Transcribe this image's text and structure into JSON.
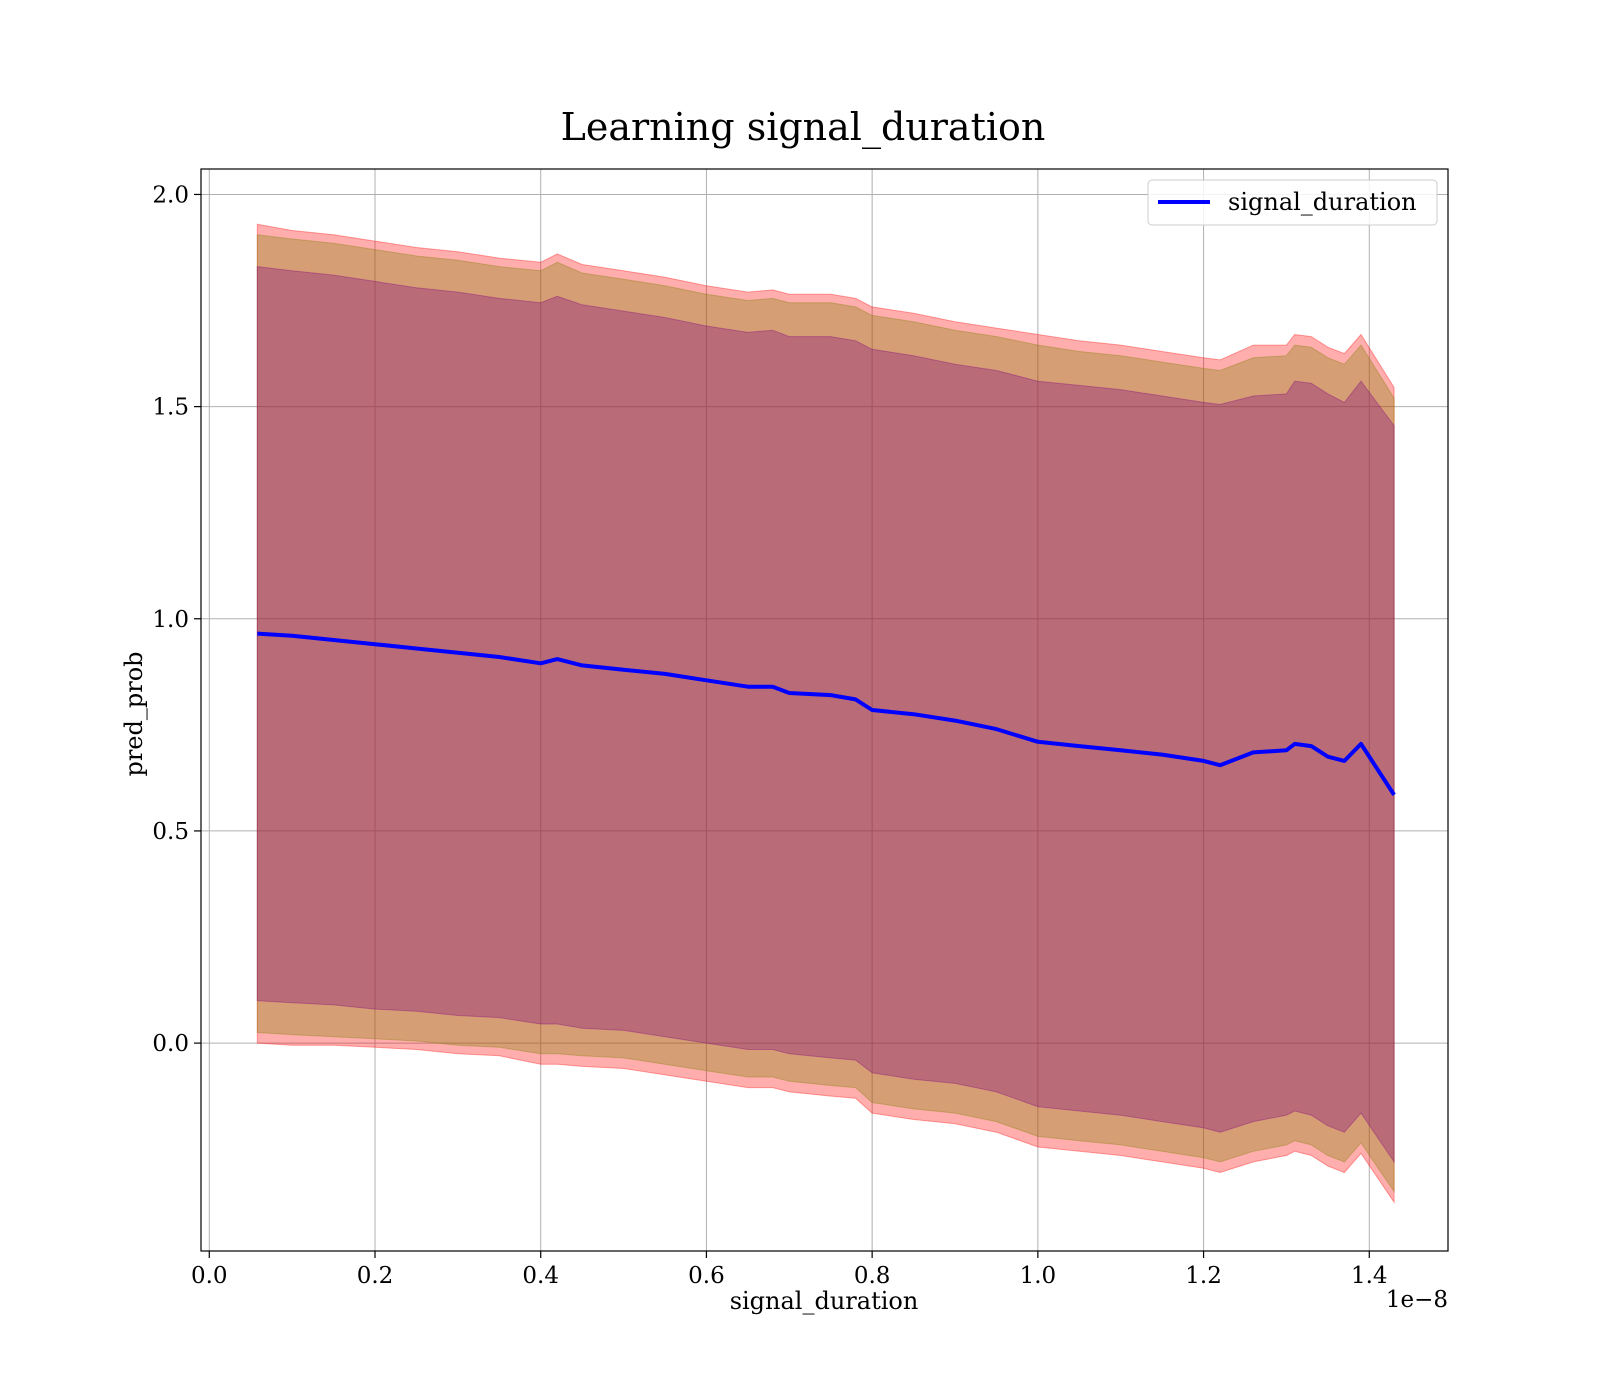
{
  "chart_data": {
    "type": "line",
    "title": "Learning signal_duration",
    "xlabel": "signal_duration",
    "ylabel": "pred_prob",
    "x_offset_text": "1e−8",
    "xlim": [
      -0.01,
      1.495
    ],
    "ylim": [
      -0.49,
      2.06
    ],
    "x_ticks": [
      0.0,
      0.2,
      0.4,
      0.6,
      0.8,
      1.0,
      1.2,
      1.4
    ],
    "x_tick_labels": [
      "0.0",
      "0.2",
      "0.4",
      "0.6",
      "0.8",
      "1.0",
      "1.2",
      "1.4"
    ],
    "y_ticks": [
      0.0,
      0.5,
      1.0,
      1.5,
      2.0
    ],
    "y_tick_labels": [
      "0.0",
      "0.5",
      "1.0",
      "1.5",
      "2.0"
    ],
    "grid": true,
    "legend": {
      "position": "top-right",
      "entries": [
        "signal_duration"
      ]
    },
    "x": [
      0.058,
      0.1,
      0.15,
      0.2,
      0.25,
      0.3,
      0.35,
      0.4,
      0.42,
      0.45,
      0.5,
      0.55,
      0.6,
      0.65,
      0.68,
      0.7,
      0.75,
      0.78,
      0.8,
      0.85,
      0.9,
      0.95,
      1.0,
      1.05,
      1.1,
      1.15,
      1.2,
      1.22,
      1.26,
      1.3,
      1.31,
      1.33,
      1.35,
      1.37,
      1.39,
      1.43
    ],
    "series": [
      {
        "name": "signal_duration",
        "color": "#0000ff",
        "values": [
          0.965,
          0.96,
          0.95,
          0.94,
          0.93,
          0.92,
          0.91,
          0.895,
          0.905,
          0.89,
          0.88,
          0.87,
          0.855,
          0.84,
          0.84,
          0.825,
          0.82,
          0.81,
          0.785,
          0.775,
          0.76,
          0.74,
          0.71,
          0.7,
          0.69,
          0.68,
          0.665,
          0.655,
          0.685,
          0.69,
          0.705,
          0.7,
          0.675,
          0.665,
          0.705,
          0.585
        ]
      }
    ],
    "bands": [
      {
        "color": "#ff0000",
        "opacity": 0.32,
        "upper": [
          1.93,
          1.915,
          1.905,
          1.89,
          1.875,
          1.865,
          1.85,
          1.84,
          1.86,
          1.835,
          1.82,
          1.805,
          1.785,
          1.77,
          1.775,
          1.765,
          1.765,
          1.755,
          1.735,
          1.72,
          1.7,
          1.685,
          1.67,
          1.655,
          1.645,
          1.63,
          1.615,
          1.61,
          1.645,
          1.645,
          1.67,
          1.665,
          1.64,
          1.625,
          1.67,
          1.545
        ],
        "lower": [
          0.0,
          -0.005,
          -0.005,
          -0.01,
          -0.015,
          -0.025,
          -0.03,
          -0.05,
          -0.05,
          -0.055,
          -0.06,
          -0.075,
          -0.09,
          -0.105,
          -0.105,
          -0.115,
          -0.125,
          -0.13,
          -0.165,
          -0.18,
          -0.19,
          -0.21,
          -0.245,
          -0.255,
          -0.265,
          -0.28,
          -0.295,
          -0.305,
          -0.28,
          -0.265,
          -0.255,
          -0.265,
          -0.29,
          -0.305,
          -0.26,
          -0.375
        ]
      },
      {
        "color": "#808000",
        "opacity": 0.32,
        "upper": [
          1.905,
          1.895,
          1.885,
          1.87,
          1.855,
          1.845,
          1.83,
          1.82,
          1.84,
          1.815,
          1.8,
          1.785,
          1.765,
          1.75,
          1.755,
          1.745,
          1.745,
          1.735,
          1.715,
          1.7,
          1.68,
          1.665,
          1.645,
          1.63,
          1.62,
          1.605,
          1.59,
          1.585,
          1.615,
          1.62,
          1.645,
          1.64,
          1.615,
          1.6,
          1.645,
          1.52
        ],
        "lower": [
          0.025,
          0.02,
          0.015,
          0.01,
          0.005,
          -0.005,
          -0.01,
          -0.025,
          -0.025,
          -0.03,
          -0.035,
          -0.05,
          -0.065,
          -0.08,
          -0.08,
          -0.09,
          -0.1,
          -0.105,
          -0.14,
          -0.155,
          -0.165,
          -0.185,
          -0.22,
          -0.23,
          -0.24,
          -0.255,
          -0.27,
          -0.28,
          -0.255,
          -0.24,
          -0.23,
          -0.24,
          -0.265,
          -0.28,
          -0.235,
          -0.35
        ]
      },
      {
        "color": "#800080",
        "opacity": 0.32,
        "upper": [
          1.83,
          1.82,
          1.81,
          1.795,
          1.78,
          1.77,
          1.755,
          1.745,
          1.76,
          1.74,
          1.725,
          1.71,
          1.69,
          1.675,
          1.68,
          1.665,
          1.665,
          1.655,
          1.635,
          1.62,
          1.6,
          1.585,
          1.56,
          1.55,
          1.54,
          1.525,
          1.51,
          1.505,
          1.525,
          1.53,
          1.56,
          1.555,
          1.53,
          1.51,
          1.56,
          1.455
        ],
        "lower": [
          0.1,
          0.095,
          0.09,
          0.08,
          0.075,
          0.065,
          0.06,
          0.045,
          0.045,
          0.035,
          0.03,
          0.015,
          0.0,
          -0.015,
          -0.015,
          -0.025,
          -0.035,
          -0.04,
          -0.07,
          -0.085,
          -0.095,
          -0.115,
          -0.15,
          -0.16,
          -0.17,
          -0.185,
          -0.2,
          -0.21,
          -0.185,
          -0.17,
          -0.16,
          -0.17,
          -0.195,
          -0.21,
          -0.165,
          -0.28
        ]
      }
    ]
  }
}
